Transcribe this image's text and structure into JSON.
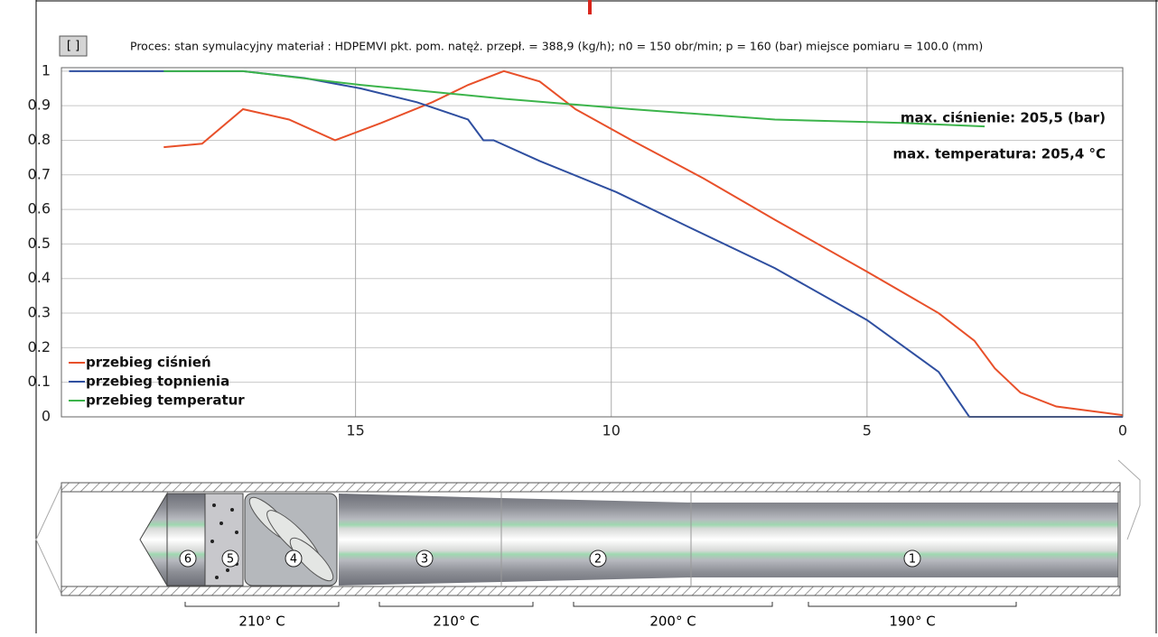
{
  "chart_data": {
    "type": "line",
    "title": "Proces: stan symulacyjny materiał : HDPEMVI pkt. pom. natęż. przepł.  = 388,9 (kg/h); n0 = 150 obr/min; p = 160 (bar) miejsce pomiaru = 100.0 (mm)",
    "button": "[ ]",
    "annotations": [
      "max. ciśnienie:  205,5 (bar)",
      "max. temperatura: 205,4 °C"
    ],
    "xlim": [
      20.75,
      0
    ],
    "xticks": [
      15,
      10,
      5,
      0
    ],
    "ylim": [
      0,
      1.01
    ],
    "yticks": [
      0,
      0.1,
      0.2,
      0.3,
      0.4,
      0.5,
      0.6,
      0.7,
      0.8,
      0.9,
      1
    ],
    "grid": true,
    "legend": "lower left",
    "series": [
      {
        "name": "przebieg ciśnień",
        "color": "#e8502a",
        "x": [
          18.75,
          18.0,
          17.2,
          16.3,
          15.4,
          14.5,
          13.5,
          12.8,
          12.1,
          11.4,
          10.7,
          9.6,
          8.2,
          6.8,
          5.0,
          3.6,
          2.9,
          2.5,
          2.0,
          1.3,
          0
        ],
        "values": [
          0.78,
          0.79,
          0.89,
          0.86,
          0.8,
          0.85,
          0.91,
          0.96,
          1.0,
          0.97,
          0.89,
          0.8,
          0.69,
          0.57,
          0.42,
          0.3,
          0.22,
          0.14,
          0.07,
          0.03,
          0.005
        ]
      },
      {
        "name": "przebieg topnienia",
        "color": "#2f4fa0",
        "x": [
          20.6,
          17.2,
          16.0,
          14.9,
          13.8,
          12.8,
          12.5,
          12.3,
          11.4,
          9.9,
          8.5,
          6.8,
          5.0,
          3.6,
          3.0,
          0
        ],
        "values": [
          1.0,
          1.0,
          0.98,
          0.95,
          0.91,
          0.86,
          0.8,
          0.8,
          0.74,
          0.65,
          0.55,
          0.43,
          0.28,
          0.13,
          0.0,
          0.0
        ]
      },
      {
        "name": "przebieg temperatur",
        "color": "#3cb44b",
        "x": [
          18.75,
          17.2,
          14.9,
          12.1,
          9.6,
          6.8,
          4.3,
          2.7
        ],
        "values": [
          1.0,
          1.0,
          0.96,
          0.92,
          0.89,
          0.86,
          0.85,
          0.84
        ]
      }
    ]
  },
  "diagram": {
    "zones": [
      {
        "label": "6"
      },
      {
        "label": "5"
      },
      {
        "label": "4"
      },
      {
        "label": "3"
      },
      {
        "label": "2"
      },
      {
        "label": "1"
      }
    ],
    "temperatures": [
      "210° C",
      "210° C",
      "200° C",
      "190° C"
    ]
  }
}
